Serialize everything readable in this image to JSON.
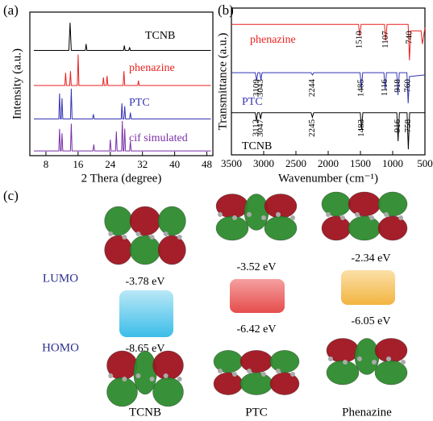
{
  "chart_data": [
    {
      "type": "line",
      "panel": "(a)",
      "xlabel": "2 Thera (degree)",
      "ylabel": "Intensity (a.u.)",
      "xlim": [
        4,
        49.5
      ],
      "xticks": [
        8,
        16,
        24,
        32,
        40,
        48
      ],
      "ylim": [
        0,
        4.5
      ],
      "series": [
        {
          "name": "TCNB",
          "color": "#000000",
          "x": [
            5,
            13.7,
            14,
            14.3,
            17.8,
            18,
            18.2,
            27.3,
            27.5,
            27.7,
            28.6,
            28.8,
            29,
            49
          ],
          "values": [
            3.3,
            3.3,
            4.17,
            3.3,
            3.3,
            3.5,
            3.3,
            3.3,
            3.45,
            3.3,
            3.3,
            3.4,
            3.3,
            3.3
          ]
        },
        {
          "name": "phenazine",
          "color": "#e8221f",
          "x": [
            5,
            12.7,
            12.9,
            13.1,
            13.9,
            14.1,
            14.3,
            15.8,
            16,
            16.2,
            22.1,
            22.3,
            22.5,
            23,
            23.2,
            23.4,
            27.2,
            27.4,
            27.6,
            30.8,
            31,
            31.2,
            49
          ],
          "values": [
            2.2,
            2.2,
            2.6,
            2.2,
            2.2,
            2.65,
            2.2,
            2.2,
            3.17,
            2.2,
            2.2,
            2.45,
            2.2,
            2.2,
            2.5,
            2.2,
            2.2,
            2.65,
            2.2,
            2.2,
            2.35,
            2.2,
            2.2
          ]
        },
        {
          "name": "PTC",
          "color": "#3434b4",
          "x": [
            5,
            11.2,
            11.4,
            11.6,
            11.8,
            12,
            12.2,
            14.1,
            14.3,
            14.5,
            19.6,
            19.8,
            20,
            26.7,
            26.9,
            27.1,
            27.4,
            27.6,
            27.8,
            28.8,
            29,
            29.2,
            49
          ],
          "values": [
            1.15,
            1.15,
            1.95,
            1.15,
            1.15,
            1.8,
            1.15,
            1.15,
            2.1,
            1.15,
            1.15,
            1.3,
            1.15,
            1.15,
            1.64,
            1.15,
            1.15,
            1.55,
            1.15,
            1.15,
            1.35,
            1.15,
            1.15
          ]
        },
        {
          "name": "cif simulated",
          "color": "#7a2fa8",
          "x": [
            5,
            11.2,
            11.4,
            11.6,
            11.8,
            12,
            12.2,
            14.1,
            14.3,
            14.5,
            19.7,
            19.9,
            20.1,
            23.8,
            24,
            24.2,
            25.3,
            25.5,
            25.7,
            26.8,
            27,
            27.2,
            27.4,
            27.6,
            27.8,
            28.8,
            29,
            29.2,
            49
          ],
          "values": [
            0.15,
            0.15,
            0.84,
            0.15,
            0.15,
            0.7,
            0.15,
            0.15,
            1.0,
            0.15,
            0.15,
            0.35,
            0.15,
            0.15,
            0.5,
            0.15,
            0.15,
            0.76,
            0.15,
            0.15,
            1.09,
            0.15,
            0.15,
            0.85,
            0.15,
            0.15,
            0.45,
            0.15,
            0.15
          ]
        }
      ]
    },
    {
      "type": "line",
      "panel": "(b)",
      "xlabel": "Wavenumber (cm⁻¹)",
      "ylabel": "Transmittance (a.u.)",
      "xlim": [
        3500,
        500
      ],
      "xticks": [
        3500,
        3000,
        2500,
        2000,
        1500,
        1000,
        500
      ],
      "ylim": [
        0,
        4.5
      ],
      "series": [
        {
          "name": "phenazine",
          "color": "#e8221f",
          "x": [
            3500,
            1530,
            1510,
            1490,
            1127,
            1107,
            1087,
            760,
            740,
            720,
            560,
            540,
            500
          ],
          "values": [
            4,
            4,
            3.64,
            4,
            4,
            3.5,
            4,
            4,
            2.9,
            3.8,
            3.8,
            3.4,
            3.9
          ],
          "peaks": [
            1510,
            1107,
            740
          ]
        },
        {
          "name": "PTC",
          "color": "#3434b4",
          "x": [
            3500,
            3130,
            3109,
            3090,
            3060,
            3043,
            3025,
            2265,
            2244,
            2225,
            1505,
            1485,
            1465,
            1136,
            1116,
            1096,
            938,
            918,
            898,
            780,
            760,
            740,
            500
          ],
          "values": [
            2.52,
            2.52,
            2.28,
            2.52,
            2.52,
            2.3,
            2.52,
            2.52,
            2.45,
            2.52,
            2.52,
            2.03,
            2.52,
            2.52,
            2.0,
            2.52,
            2.52,
            1.83,
            2.52,
            2.52,
            1.58,
            2.4,
            2.45
          ],
          "peaks": [
            3109,
            3043,
            2244,
            1485,
            1116,
            918,
            760
          ]
        },
        {
          "name": "TCNB",
          "color": "#000000",
          "x": [
            3500,
            3130,
            3112,
            3095,
            3065,
            3047,
            3030,
            2265,
            2245,
            2225,
            1503,
            1483,
            1463,
            936,
            916,
            896,
            778,
            758,
            738,
            500
          ],
          "values": [
            1.29,
            1.29,
            1.04,
            1.29,
            1.29,
            1.1,
            1.29,
            1.29,
            1.15,
            1.29,
            1.29,
            0.79,
            1.29,
            1.29,
            0.42,
            1.29,
            1.29,
            0.17,
            1.29,
            1.29
          ],
          "peaks": [
            3112,
            3047,
            2245,
            1483,
            916,
            758
          ]
        }
      ]
    }
  ],
  "diagram": {
    "panel": "(c)",
    "levels": [
      "LUMO",
      "HOMO"
    ],
    "molecules": [
      {
        "name": "TCNB",
        "lumo": "-3.78 eV",
        "homo": "-8.65 eV"
      },
      {
        "name": "PTC",
        "lumo": "-3.52 eV",
        "homo": "-6.42 eV"
      },
      {
        "name": "Phenazine",
        "lumo": "-2.34 eV",
        "homo": "-6.05 eV"
      }
    ]
  }
}
